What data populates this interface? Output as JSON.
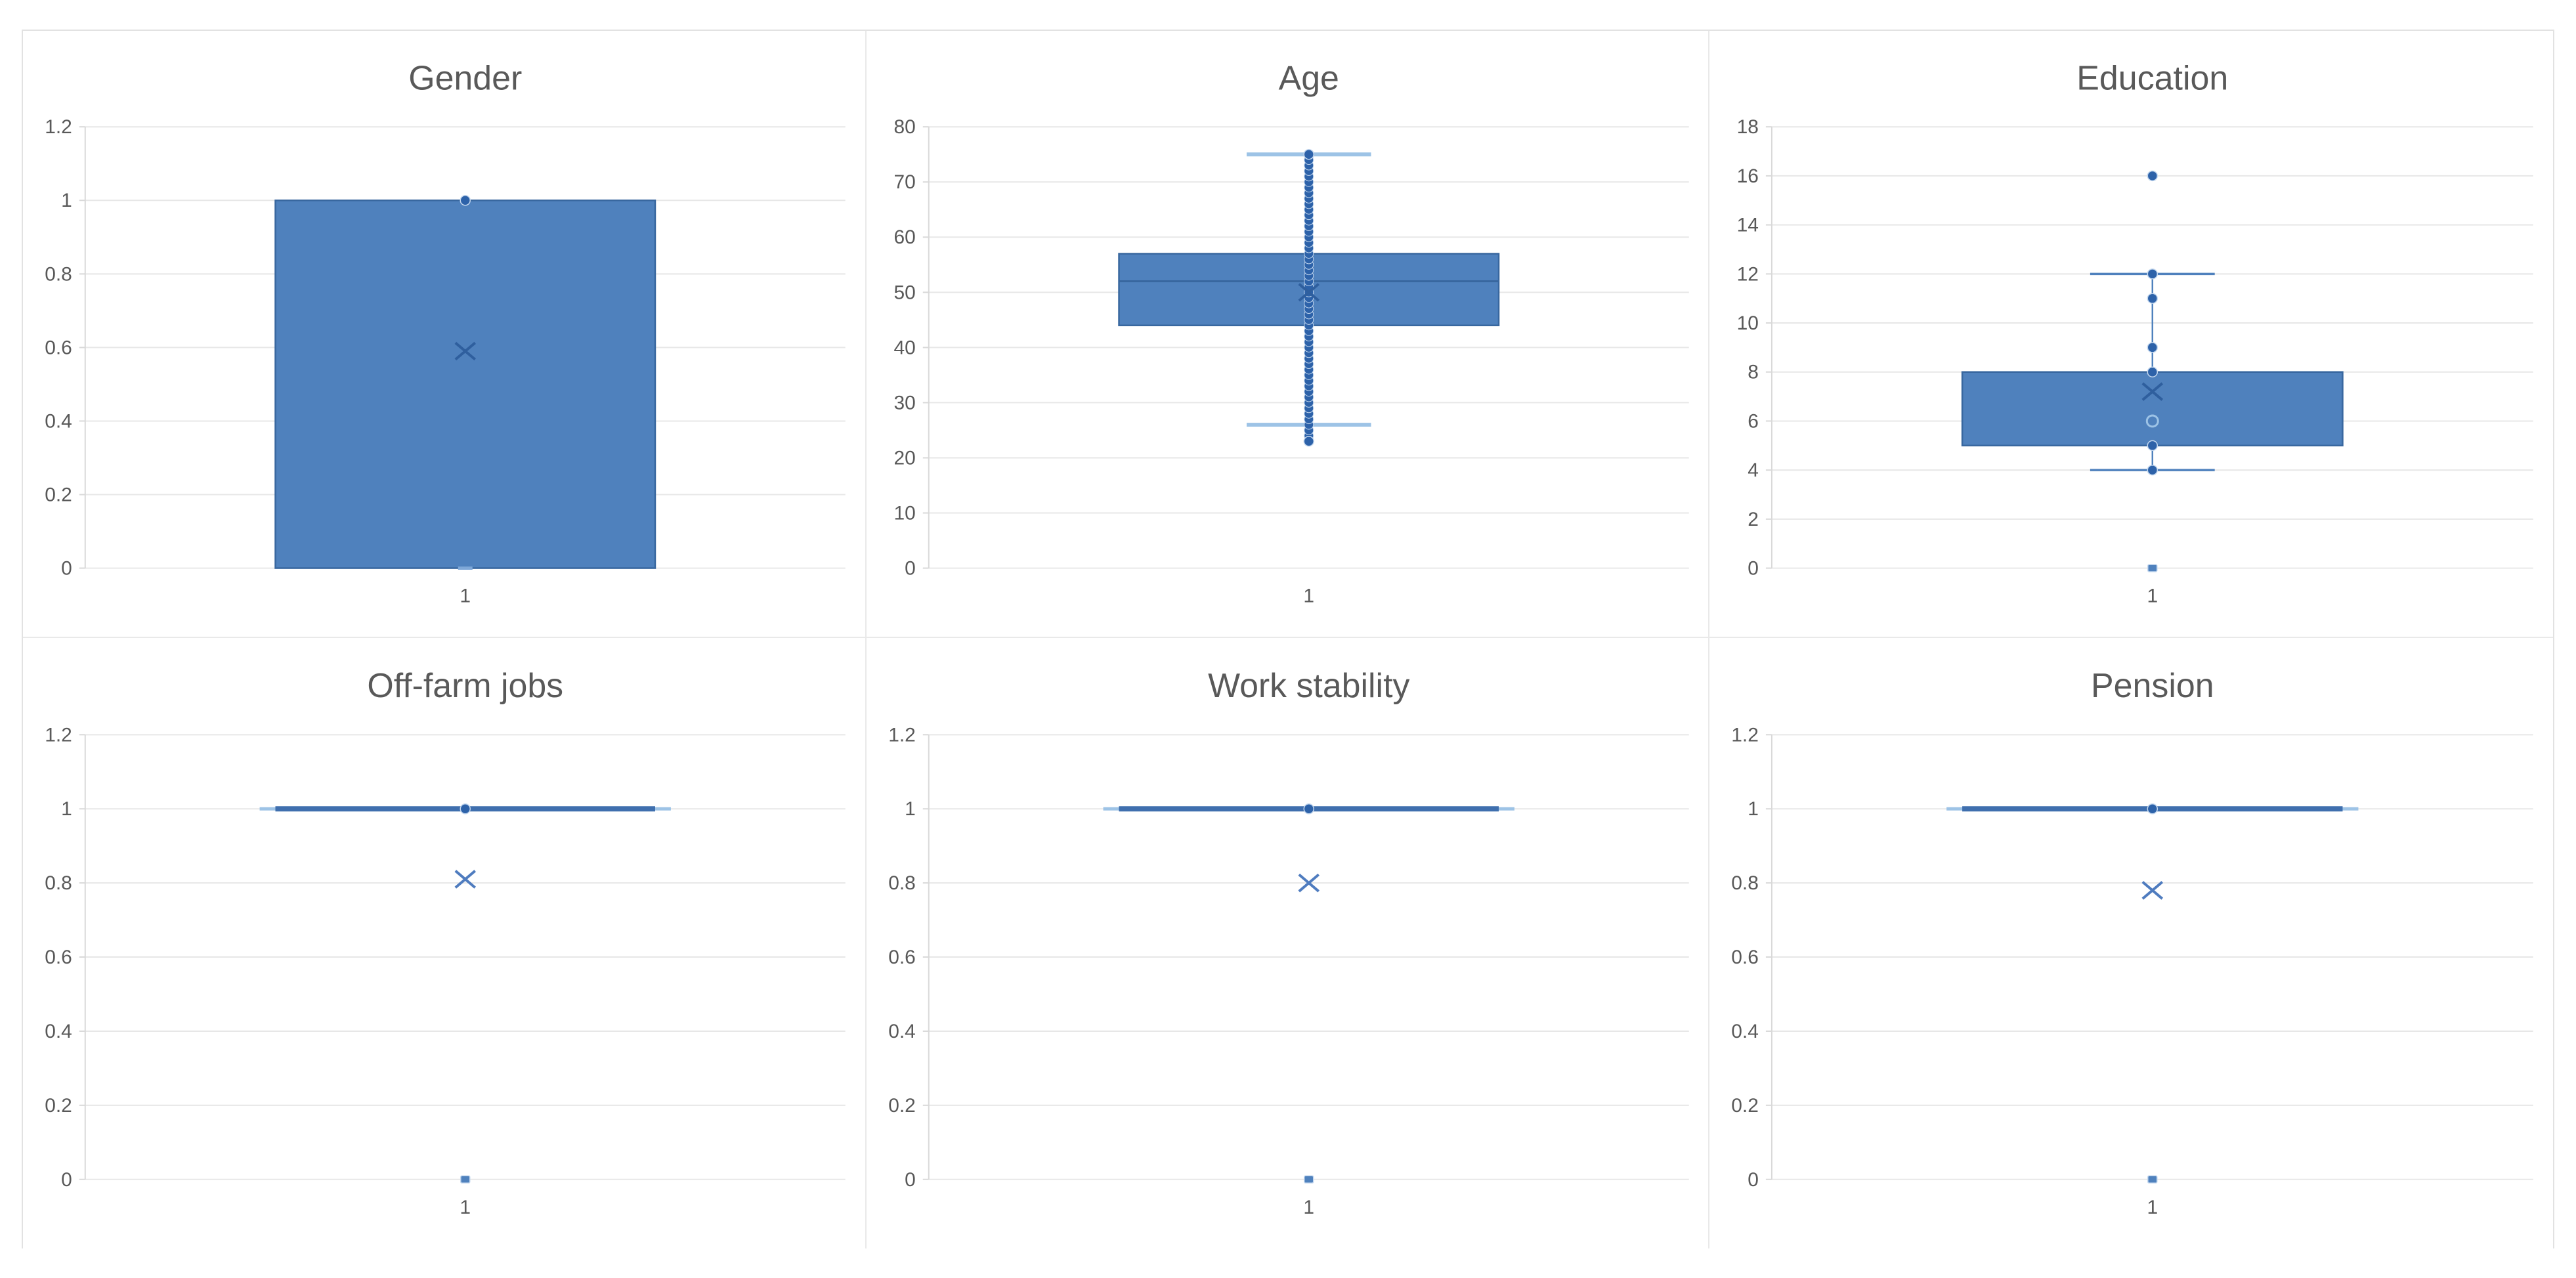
{
  "figure": {
    "background": "#ffffff",
    "panel_border_color": "#e9e9e9",
    "gridline_color": "#e7e7e7",
    "axis_line_color": "#d9d9d9",
    "axis_text_color": "#595959",
    "title_color": "#595959",
    "box_fill": "#4f81bd",
    "box_border": "#38679f",
    "median_color": "#38679f",
    "point_color": "#2d62a9",
    "point_halo": "#c3d7ee",
    "cap_light_color": "#9dc3e6",
    "whisker_color": "#4f81bd",
    "mean_on_box_color": "#2f5f9e",
    "mean_off_box_color": "#4f7cbf",
    "dash_point_color": "#7fa8d8",
    "collapsed_line_color": "#3f6fae"
  },
  "chart_data": [
    {
      "type": "box",
      "title": "Gender",
      "x_tick_label": "1",
      "ylim": [
        0,
        1.2
      ],
      "ytick_values": [
        0,
        0.2,
        0.4,
        0.6,
        0.8,
        1,
        1.2
      ],
      "ytick_labels": [
        "0",
        "0.2",
        "0.4",
        "0.6",
        "0.8",
        "1",
        "1.2"
      ],
      "grid": true,
      "legend": "none",
      "box": {
        "q1": 0,
        "median": 1,
        "q3": 1,
        "whisker_low": null,
        "whisker_high": null,
        "mean": 0.59,
        "show_median_line": false
      },
      "cap_light": false,
      "column_points": [],
      "dot_points": [
        1
      ],
      "ring_points": [],
      "dash_points": [
        0
      ],
      "square_points": []
    },
    {
      "type": "box",
      "title": "Age",
      "x_tick_label": "1",
      "ylim": [
        0,
        80
      ],
      "ytick_values": [
        0,
        10,
        20,
        30,
        40,
        50,
        60,
        70,
        80
      ],
      "ytick_labels": [
        "0",
        "10",
        "20",
        "30",
        "40",
        "50",
        "60",
        "70",
        "80"
      ],
      "grid": true,
      "legend": "none",
      "box": {
        "q1": 44,
        "median": 52,
        "q3": 57,
        "whisker_low": 26,
        "whisker_high": 75,
        "mean": 50,
        "show_median_line": true
      },
      "cap_light": true,
      "column_points": [
        24,
        25,
        26,
        27,
        28,
        29,
        30,
        31,
        32,
        33,
        34,
        35,
        36,
        37,
        38,
        39,
        40,
        41,
        42,
        43,
        44,
        45,
        46,
        47,
        48,
        49,
        50,
        51,
        52,
        53,
        54,
        55,
        56,
        57,
        58,
        59,
        60,
        61,
        62,
        63,
        64,
        65,
        66,
        67,
        68,
        69,
        70,
        71,
        72,
        73,
        74,
        75
      ],
      "dot_points": [
        23,
        75
      ],
      "ring_points": [],
      "dash_points": [],
      "square_points": []
    },
    {
      "type": "box",
      "title": "Education",
      "x_tick_label": "1",
      "ylim": [
        0,
        18
      ],
      "ytick_values": [
        0,
        2,
        4,
        6,
        8,
        10,
        12,
        14,
        16,
        18
      ],
      "ytick_labels": [
        "0",
        "2",
        "4",
        "6",
        "8",
        "10",
        "12",
        "14",
        "16",
        "18"
      ],
      "grid": true,
      "legend": "none",
      "box": {
        "q1": 5,
        "median": 6,
        "q3": 8,
        "whisker_low": 4,
        "whisker_high": 12,
        "mean": 7.2,
        "show_median_line": false
      },
      "cap_light": false,
      "column_points": [],
      "dot_points": [
        16,
        12,
        11,
        9,
        8,
        5,
        4
      ],
      "ring_points": [
        6
      ],
      "dash_points": [],
      "square_points": [
        0
      ]
    },
    {
      "type": "box",
      "title": "Off-farm jobs",
      "x_tick_label": "1",
      "ylim": [
        0,
        1.2
      ],
      "ytick_values": [
        0,
        0.2,
        0.4,
        0.6,
        0.8,
        1,
        1.2
      ],
      "ytick_labels": [
        "0",
        "0.2",
        "0.4",
        "0.6",
        "0.8",
        "1",
        "1.2"
      ],
      "grid": true,
      "legend": "none",
      "box": {
        "q1": 1,
        "median": 1,
        "q3": 1,
        "whisker_low": 1,
        "whisker_high": 1,
        "mean": 0.81,
        "show_median_line": false
      },
      "cap_light": true,
      "column_points": [],
      "dot_points": [
        1
      ],
      "ring_points": [],
      "dash_points": [],
      "square_points": [
        0
      ]
    },
    {
      "type": "box",
      "title": "Work stability",
      "x_tick_label": "1",
      "ylim": [
        0,
        1.2
      ],
      "ytick_values": [
        0,
        0.2,
        0.4,
        0.6,
        0.8,
        1,
        1.2
      ],
      "ytick_labels": [
        "0",
        "0.2",
        "0.4",
        "0.6",
        "0.8",
        "1",
        "1.2"
      ],
      "grid": true,
      "legend": "none",
      "box": {
        "q1": 1,
        "median": 1,
        "q3": 1,
        "whisker_low": 1,
        "whisker_high": 1,
        "mean": 0.8,
        "show_median_line": false
      },
      "cap_light": true,
      "column_points": [],
      "dot_points": [
        1
      ],
      "ring_points": [],
      "dash_points": [],
      "square_points": [
        0
      ]
    },
    {
      "type": "box",
      "title": "Pension",
      "x_tick_label": "1",
      "ylim": [
        0,
        1.2
      ],
      "ytick_values": [
        0,
        0.2,
        0.4,
        0.6,
        0.8,
        1,
        1.2
      ],
      "ytick_labels": [
        "0",
        "0.2",
        "0.4",
        "0.6",
        "0.8",
        "1",
        "1.2"
      ],
      "grid": true,
      "legend": "none",
      "box": {
        "q1": 1,
        "median": 1,
        "q3": 1,
        "whisker_low": 1,
        "whisker_high": 1,
        "mean": 0.78,
        "show_median_line": false
      },
      "cap_light": true,
      "column_points": [],
      "dot_points": [
        1
      ],
      "ring_points": [],
      "dash_points": [],
      "square_points": [
        0
      ]
    }
  ]
}
